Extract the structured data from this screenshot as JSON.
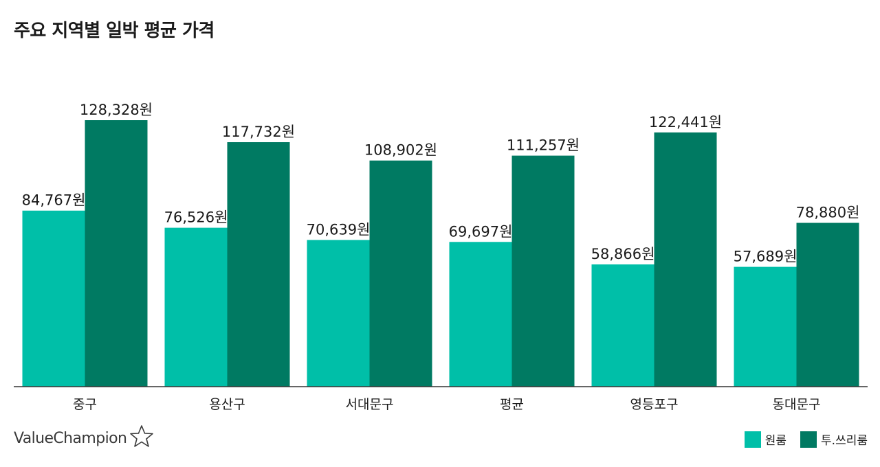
{
  "chart_data": {
    "type": "bar",
    "title": "주요 지역별 일박 평균 가격",
    "categories": [
      "중구",
      "용산구",
      "서대문구",
      "평균",
      "영등포구",
      "동대문구"
    ],
    "series": [
      {
        "name": "원룸",
        "color": "#00bfa8",
        "values": [
          84767,
          76526,
          70639,
          69697,
          58866,
          57689
        ],
        "labels": [
          "84,767원",
          "76,526원",
          "70,639원",
          "69,697원",
          "58,866원",
          "57,689원"
        ]
      },
      {
        "name": "투.쓰리룸",
        "color": "#007a62",
        "values": [
          128328,
          117732,
          108902,
          111257,
          122441,
          78880
        ],
        "labels": [
          "128,328원",
          "117,732원",
          "108,902원",
          "111,257원",
          "122,441원",
          "78,880원"
        ]
      }
    ],
    "ylim": [
      0,
      128328
    ],
    "grid": false,
    "legend_position": "bottom-right"
  },
  "brand": {
    "name": "ValueChampion",
    "icon": "star-outline-icon"
  }
}
